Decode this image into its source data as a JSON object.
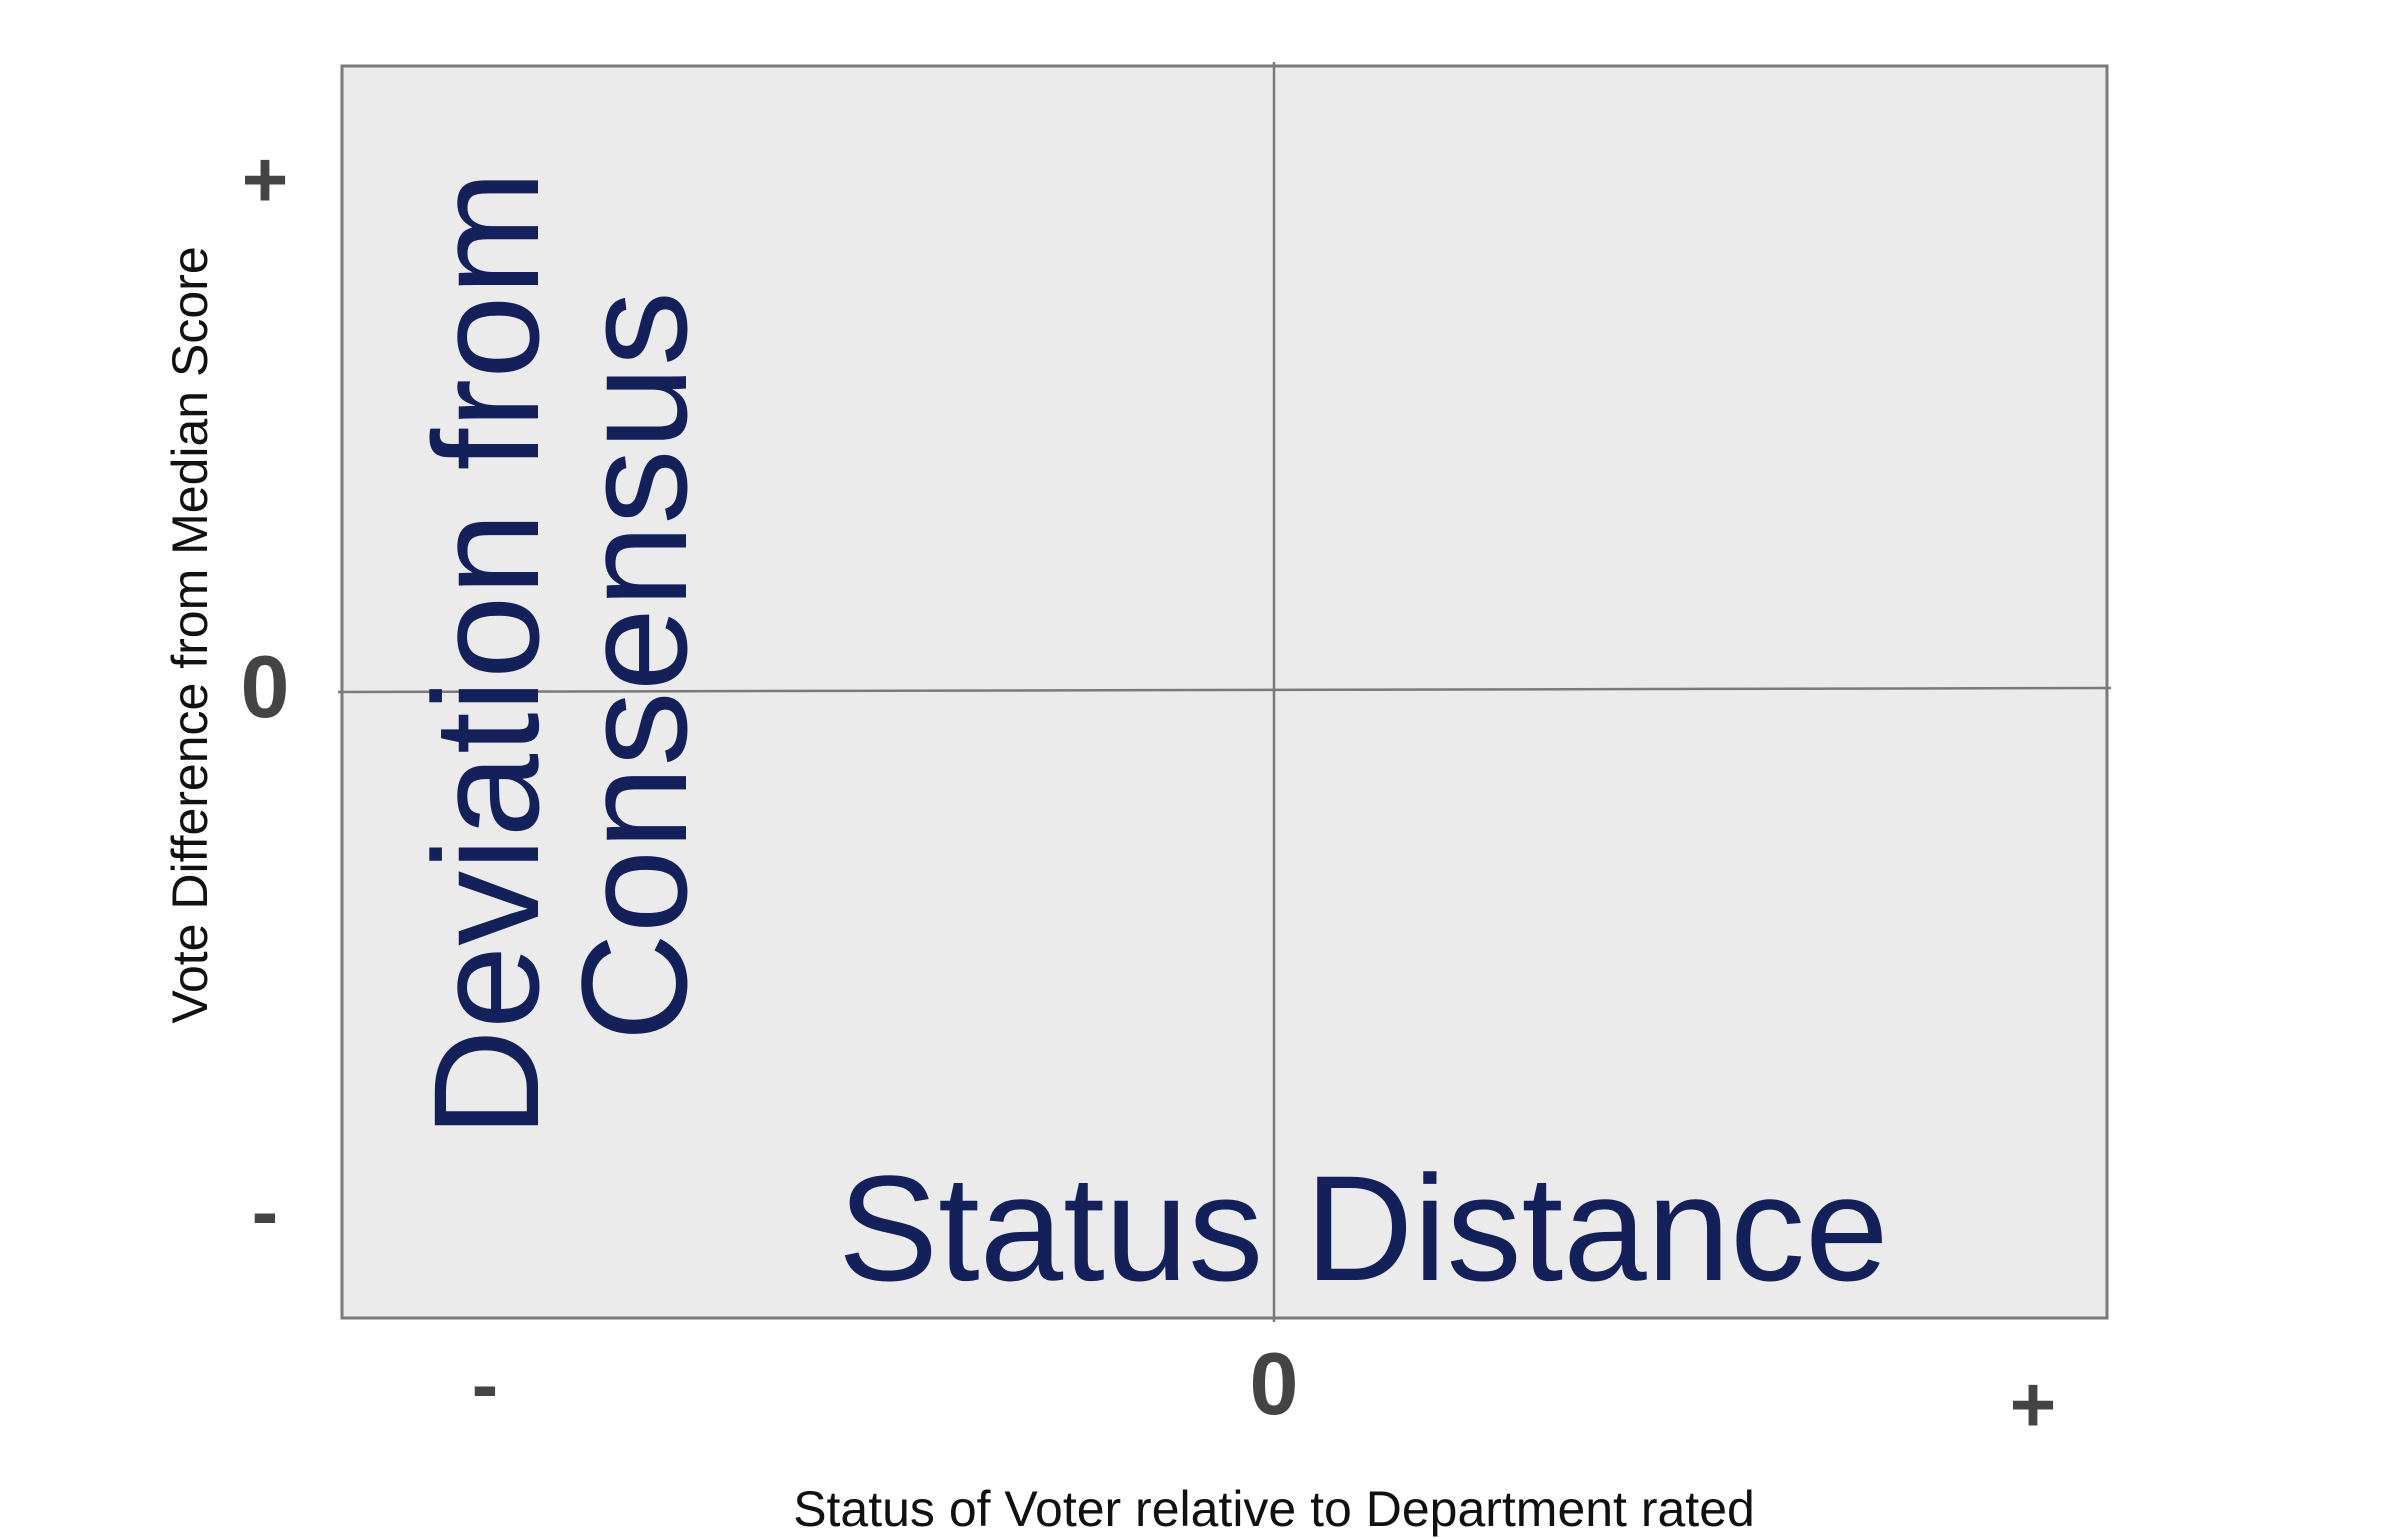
{
  "diagram": {
    "x_axis_label": "Status of Voter relative to Department rated",
    "y_axis_label": "Vote Difference from Median Score",
    "x_ticks": {
      "minus": "-",
      "zero": "0",
      "plus": "+"
    },
    "y_ticks": {
      "plus": "+",
      "zero": "0",
      "minus": "-"
    },
    "concept_horizontal": "Status Distance",
    "concept_vertical_line1": "Deviation from",
    "concept_vertical_line2": "Consensus",
    "colors": {
      "plot_background": "#ebebeb",
      "frame": "#7a7a7a",
      "tick_text": "#444444",
      "concept_text": "#13205a"
    }
  }
}
